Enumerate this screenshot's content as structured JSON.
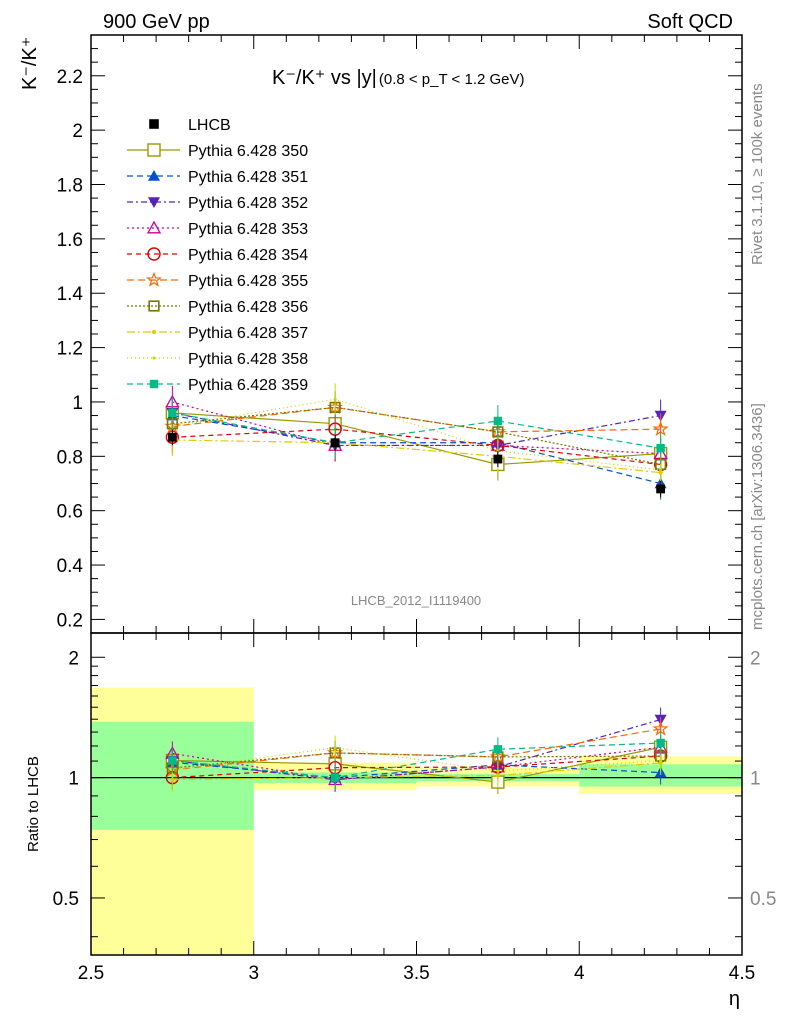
{
  "header": {
    "left": "900 GeV pp",
    "right": "Soft QCD"
  },
  "plot": {
    "title_main": "K⁻/K⁺ vs |y|",
    "title_sub": "(0.8 < p_T < 1.2 GeV)",
    "ylabel": "K⁻/K⁺",
    "ratio_ylabel": "Ratio to LHCB",
    "xlabel": "η",
    "analysis_id": "LHCB_2012_I1119400",
    "side_rivet": "Rivet 3.1.10, ≥ 100k events",
    "side_mcplots": "mcplots.cern.ch [arXiv:1306.3436]"
  },
  "chart_data": {
    "type": "scatter",
    "xlabel": "η",
    "ylabel": "K⁻/K⁺",
    "xlim": [
      2.5,
      4.5
    ],
    "ylim": [
      0.15,
      2.35
    ],
    "ratio_ylim": [
      0.36,
      2.3
    ],
    "ratio_scale": "log",
    "x_ticks": [
      2.5,
      3,
      3.5,
      4,
      4.5
    ],
    "y_ticks": [
      0.2,
      0.4,
      0.6,
      0.8,
      1,
      1.2,
      1.4,
      1.6,
      1.8,
      2,
      2.2
    ],
    "ratio_ticks": [
      0.5,
      1,
      2
    ],
    "legend_position": "top-left",
    "data": {
      "name": "LHCB",
      "x": [
        2.75,
        3.25,
        3.75,
        4.25
      ],
      "y": [
        0.87,
        0.85,
        0.79,
        0.68
      ],
      "err_band_green": [
        [
          0.74,
          1.38
        ],
        [
          0.97,
          1.03
        ],
        [
          0.98,
          1.02
        ],
        [
          0.95,
          1.08
        ]
      ],
      "err_band_yellow": [
        [
          0.36,
          1.68
        ],
        [
          0.93,
          1.09
        ],
        [
          0.95,
          1.06
        ],
        [
          0.91,
          1.13
        ]
      ]
    },
    "series": [
      {
        "name": "Pythia 6.428 350",
        "color": "#999900",
        "marker": "square-open",
        "dash": "",
        "y": [
          0.96,
          0.92,
          0.77,
          0.81
        ]
      },
      {
        "name": "Pythia 6.428 351",
        "color": "#0052cc",
        "marker": "triangle-up",
        "dash": "6,4",
        "y": [
          0.95,
          0.85,
          0.85,
          0.7
        ]
      },
      {
        "name": "Pythia 6.428 352",
        "color": "#5522bb",
        "marker": "triangle-down",
        "dash": "6,3,2,3",
        "y": [
          0.96,
          0.84,
          0.84,
          0.95
        ]
      },
      {
        "name": "Pythia 6.428 353",
        "color": "#cc0099",
        "marker": "triangle-open",
        "dash": "2,3",
        "y": [
          1.0,
          0.84,
          0.84,
          0.81
        ]
      },
      {
        "name": "Pythia 6.428 354",
        "color": "#dd0000",
        "marker": "circle-open",
        "dash": "5,4",
        "y": [
          0.87,
          0.9,
          0.84,
          0.77
        ]
      },
      {
        "name": "Pythia 6.428 355",
        "color": "#ff6600",
        "marker": "star-open",
        "dash": "7,4",
        "y": [
          0.91,
          0.98,
          0.89,
          0.9
        ]
      },
      {
        "name": "Pythia 6.428 356",
        "color": "#777700",
        "marker": "square-open-small",
        "dash": "2,2",
        "y": [
          0.92,
          0.98,
          0.89,
          0.77
        ]
      },
      {
        "name": "Pythia 6.428 357",
        "color": "#ddcc00",
        "marker": "dot",
        "dash": "8,3,2,3",
        "y": [
          0.86,
          0.85,
          0.8,
          0.74
        ]
      },
      {
        "name": "Pythia 6.428 358",
        "color": "#bbdd00",
        "marker": "dot-small",
        "dash": "1,3",
        "y": [
          0.91,
          1.01,
          0.82,
          0.75
        ]
      },
      {
        "name": "Pythia 6.428 359",
        "color": "#00bb88",
        "marker": "square-filled",
        "dash": "6,4",
        "y": [
          0.96,
          0.85,
          0.93,
          0.83
        ]
      }
    ]
  }
}
